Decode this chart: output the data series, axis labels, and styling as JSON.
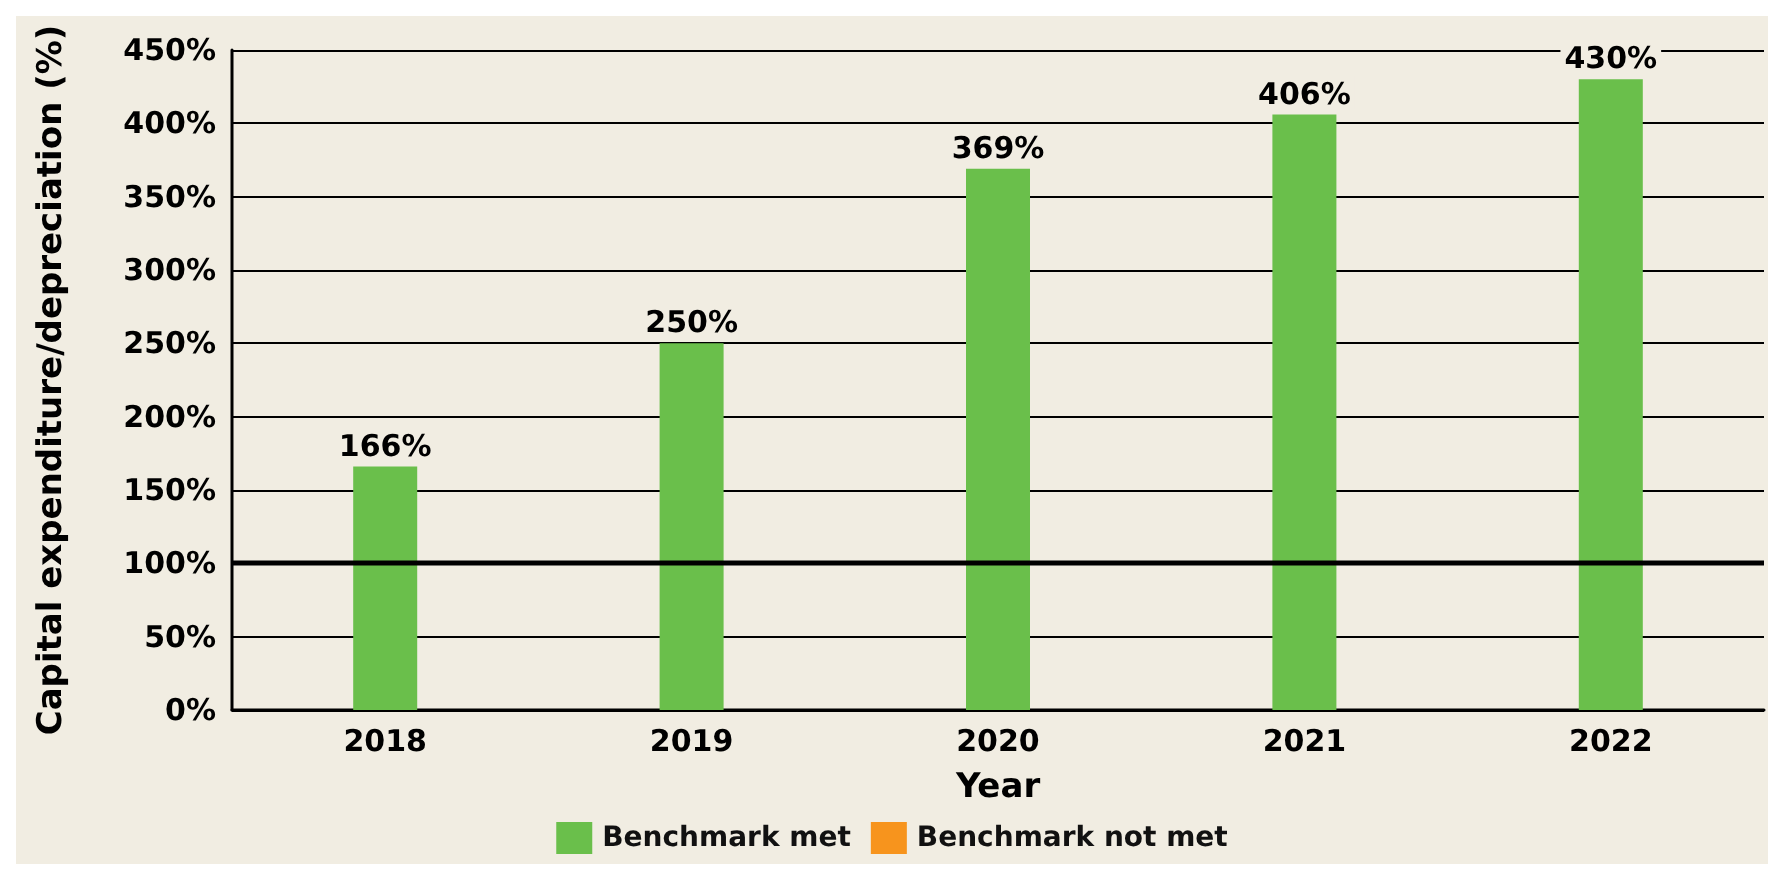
{
  "chart_data": {
    "type": "bar",
    "xlabel": "Year",
    "ylabel": "Capital expenditure/depreciation (%)",
    "categories": [
      "2018",
      "2019",
      "2020",
      "2021",
      "2022"
    ],
    "series": [
      {
        "name": "Benchmark met",
        "color": "#6abf4b",
        "values": [
          166,
          250,
          369,
          406,
          430
        ],
        "value_labels": [
          "166%",
          "250%",
          "369%",
          "406%",
          "430%"
        ]
      },
      {
        "name": "Benchmark not met",
        "color": "#f7941d",
        "values": [
          null,
          null,
          null,
          null,
          null
        ]
      }
    ],
    "ylim": [
      0,
      450
    ],
    "yticks": [
      {
        "value": 0,
        "label": "0%"
      },
      {
        "value": 50,
        "label": "50%"
      },
      {
        "value": 100,
        "label": "100%"
      },
      {
        "value": 150,
        "label": "150%"
      },
      {
        "value": 200,
        "label": "200%"
      },
      {
        "value": 250,
        "label": "250%"
      },
      {
        "value": 300,
        "label": "300%"
      },
      {
        "value": 350,
        "label": "350%"
      },
      {
        "value": 400,
        "label": "400%"
      },
      {
        "value": 450,
        "label": "450%"
      }
    ],
    "ref_lines": [
      {
        "axis": "y",
        "value": 100,
        "color": "#000000"
      }
    ],
    "grid": "y",
    "legend": "bottom"
  }
}
